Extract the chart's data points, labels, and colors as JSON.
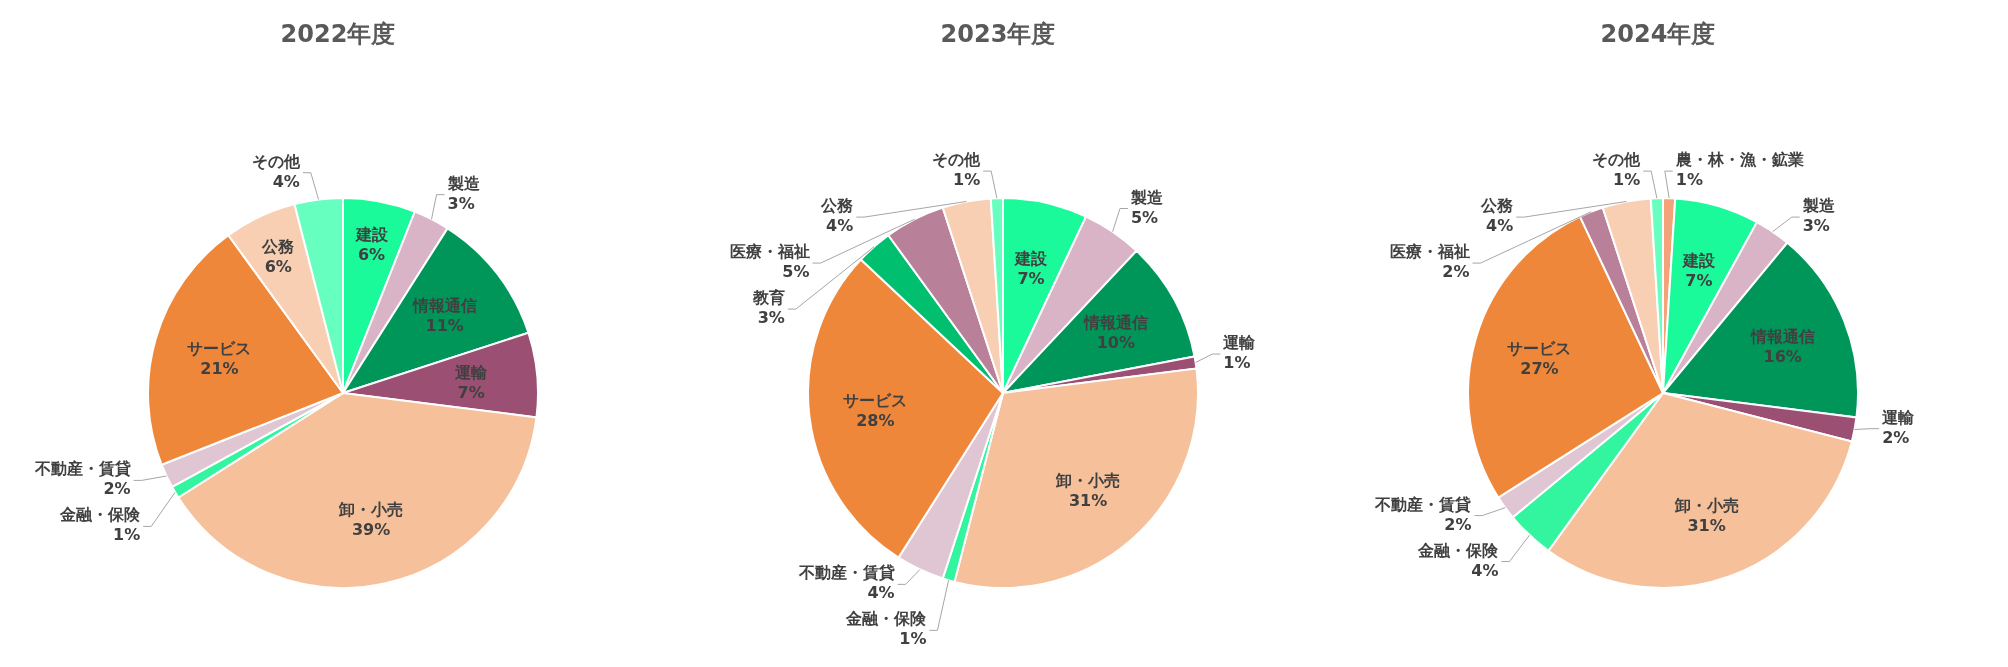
{
  "chart_data": [
    {
      "type": "pie",
      "title": "2022年度",
      "categories": [
        "建設",
        "製造",
        "情報通信",
        "運輸",
        "卸・小売",
        "金融・保険",
        "不動産・賃貸",
        "サービス",
        "公務",
        "その他"
      ],
      "values": [
        6,
        3,
        11,
        7,
        39,
        1,
        2,
        21,
        6,
        4
      ],
      "value_labels": [
        "6%",
        "3%",
        "11%",
        "7%",
        "39%",
        "1%",
        "2%",
        "21%",
        "6%",
        "4%"
      ],
      "colors": [
        "#1afa9a",
        "#d9b3c6",
        "#00965a",
        "#9b4f73",
        "#f5c09a",
        "#33f5a0",
        "#e0c6d3",
        "#ef873b",
        "#f8cfb3",
        "#66ffc0"
      ]
    },
    {
      "type": "pie",
      "title": "2023年度",
      "categories": [
        "建設",
        "製造",
        "情報通信",
        "運輸",
        "卸・小売",
        "金融・保険",
        "不動産・賃貸",
        "サービス",
        "教育",
        "医療・福祉",
        "公務",
        "その他"
      ],
      "values": [
        7,
        5,
        10,
        1,
        31,
        1,
        4,
        28,
        3,
        5,
        4,
        1
      ],
      "value_labels": [
        "7%",
        "5%",
        "10%",
        "1%",
        "31%",
        "1%",
        "4%",
        "28%",
        "3%",
        "5%",
        "4%",
        "1%"
      ],
      "colors": [
        "#1afa9a",
        "#d9b3c6",
        "#00965a",
        "#9b4f73",
        "#f5c09a",
        "#33f5a0",
        "#e0c6d3",
        "#ef873b",
        "#00c070",
        "#b88099",
        "#f8cfb3",
        "#66ffc0"
      ]
    },
    {
      "type": "pie",
      "title": "2024年度",
      "categories": [
        "農・林・漁・鉱業",
        "建設",
        "製造",
        "情報通信",
        "運輸",
        "卸・小売",
        "金融・保険",
        "不動産・賃貸",
        "サービス",
        "医療・福祉",
        "公務",
        "その他"
      ],
      "values": [
        1,
        7,
        3,
        16,
        2,
        31,
        4,
        2,
        27,
        2,
        4,
        1
      ],
      "value_labels": [
        "1%",
        "7%",
        "3%",
        "16%",
        "2%",
        "31%",
        "4%",
        "2%",
        "27%",
        "2%",
        "4%",
        "1%"
      ],
      "colors": [
        "#f4a27a",
        "#1afa9a",
        "#d9b3c6",
        "#00965a",
        "#9b4f73",
        "#f5c09a",
        "#33f5a0",
        "#e0c6d3",
        "#ef873b",
        "#b88099",
        "#f8cfb3",
        "#66ffc0"
      ]
    }
  ]
}
